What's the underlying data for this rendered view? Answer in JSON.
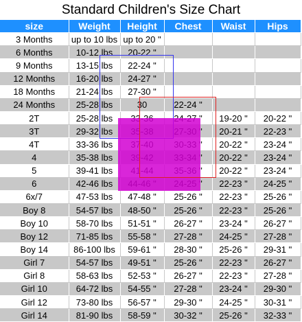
{
  "title": "Standard Children's Size Chart",
  "headers": [
    "size",
    "Weight",
    "Height",
    "Chest",
    "Waist",
    "Hips"
  ],
  "rows": [
    [
      "3 Months",
      "up to 10 lbs",
      "up to 20 \"",
      "",
      "",
      ""
    ],
    [
      "6 Months",
      "10-12 lbs",
      "20-22 \"",
      "",
      "",
      ""
    ],
    [
      "9 Months",
      "13-15 lbs",
      "22-24 \"",
      "",
      "",
      ""
    ],
    [
      "12 Months",
      "16-20 lbs",
      "24-27 \"",
      "",
      "",
      ""
    ],
    [
      "18 Months",
      "21-24 lbs",
      "27-30 \"",
      "",
      "",
      ""
    ],
    [
      "24 Months",
      "25-28 lbs",
      "30",
      "22-24 \"",
      "",
      ""
    ],
    [
      "2T",
      "25-28 lbs",
      "33-36",
      "24-27 \"",
      "19-20 \"",
      "20-22 \""
    ],
    [
      "3T",
      "29-32 lbs",
      "35-38",
      "27-30 \"",
      "20-21 \"",
      "22-23 \""
    ],
    [
      "4T",
      "33-36 lbs",
      "37-40",
      "30-33 \"",
      "20-22 \"",
      "23-24 \""
    ],
    [
      "4",
      "35-38 lbs",
      "39-42",
      "33-34 \"",
      "20-22 \"",
      "23-24 \""
    ],
    [
      "5",
      "39-41 lbs",
      "41-44",
      "35-36 \"",
      "20-22 \"",
      "23-24 \""
    ],
    [
      "6",
      "42-46 lbs",
      "44-46 \"",
      "24-25 \"",
      "22-23 \"",
      "24-25 \""
    ],
    [
      "6x/7",
      "47-53 lbs",
      "47-48 \"",
      "25-26 \"",
      "22-23 \"",
      "25-26 \""
    ],
    [
      "Boy 8",
      "54-57 lbs",
      "48-50 \"",
      "25-26 \"",
      "22-23 \"",
      "25-26 \""
    ],
    [
      "Boy 10",
      "58-70 lbs",
      "51-51 \"",
      "26-27 \"",
      "23-24 \"",
      "26-27 \""
    ],
    [
      "Boy 12",
      "71-85 lbs",
      "55-58 \"",
      "27-28 \"",
      "24-25 \"",
      "27-28 \""
    ],
    [
      "Boy 14",
      "86-100 lbs",
      "59-61 \"",
      "28-30 \"",
      "25-26 \"",
      "29-31 \""
    ],
    [
      "Girl 7",
      "54-57 lbs",
      "49-51 \"",
      "25-26 \"",
      "22-23 \"",
      "26-27 \""
    ],
    [
      "Girl 8",
      "58-63 lbs",
      "52-53 \"",
      "26-27 \"",
      "22-23 \"",
      "27-28 \""
    ],
    [
      "Girl 10",
      "64-72 lbs",
      "54-55 \"",
      "27-28 \"",
      "23-24 \"",
      "29-30 \""
    ],
    [
      "Girl 12",
      "73-80 lbs",
      "56-57 \"",
      "29-30 \"",
      "24-25 \"",
      "30-31 \""
    ],
    [
      "Girl 14",
      "81-90 lbs",
      "58-59 \"",
      "30-32 \"",
      "25-26 \"",
      "32-33 \""
    ]
  ],
  "overlay_text": {
    "red_box_label_lbs": "lbs",
    "red_box_label_chest": "22-24 \""
  },
  "colors": {
    "header_bg": "#1e90ff",
    "row_gray": "#c8c8c8",
    "blue_outline": "#3333ee",
    "magenta_fill": "#d200d2",
    "red_outline": "#e02020"
  }
}
